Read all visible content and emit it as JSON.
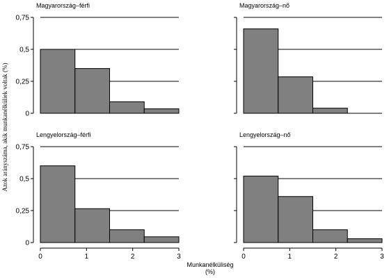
{
  "chart_data": {
    "type": "bar",
    "ylabel": "Azok aránysz­áma, akik munkanélküliek voltak (%)",
    "xlabel": "Munkanélküliség",
    "xlabel_unit": "(%)",
    "xlim": [
      0,
      3
    ],
    "ylim": [
      0,
      0.75
    ],
    "x_ticks": [
      "0",
      "1",
      "2",
      "3"
    ],
    "y_ticks": [
      "0",
      "0,25",
      "0,5",
      "0,75"
    ],
    "grid": "horizontal",
    "bar_color": "#808080",
    "panels": [
      {
        "title": "Magyarország–férfi",
        "bins": [
          [
            0,
            0.75
          ],
          [
            0.75,
            1.5
          ],
          [
            1.5,
            2.25
          ],
          [
            2.25,
            3.0
          ]
        ],
        "values": [
          0.5,
          0.35,
          0.09,
          0.035
        ]
      },
      {
        "title": "Magyarország–nő",
        "bins": [
          [
            0,
            0.75
          ],
          [
            0.75,
            1.5
          ],
          [
            1.5,
            2.25
          ]
        ],
        "values": [
          0.66,
          0.285,
          0.04
        ]
      },
      {
        "title": "Lengyelország–férfi",
        "bins": [
          [
            0,
            0.75
          ],
          [
            0.75,
            1.5
          ],
          [
            1.5,
            2.25
          ],
          [
            2.25,
            3.0
          ]
        ],
        "values": [
          0.6,
          0.265,
          0.1,
          0.045
        ]
      },
      {
        "title": "Lengyelország–nő",
        "bins": [
          [
            0,
            0.75
          ],
          [
            0.75,
            1.5
          ],
          [
            1.5,
            2.25
          ],
          [
            2.25,
            3.0
          ]
        ],
        "values": [
          0.52,
          0.36,
          0.1,
          0.03
        ]
      }
    ]
  }
}
